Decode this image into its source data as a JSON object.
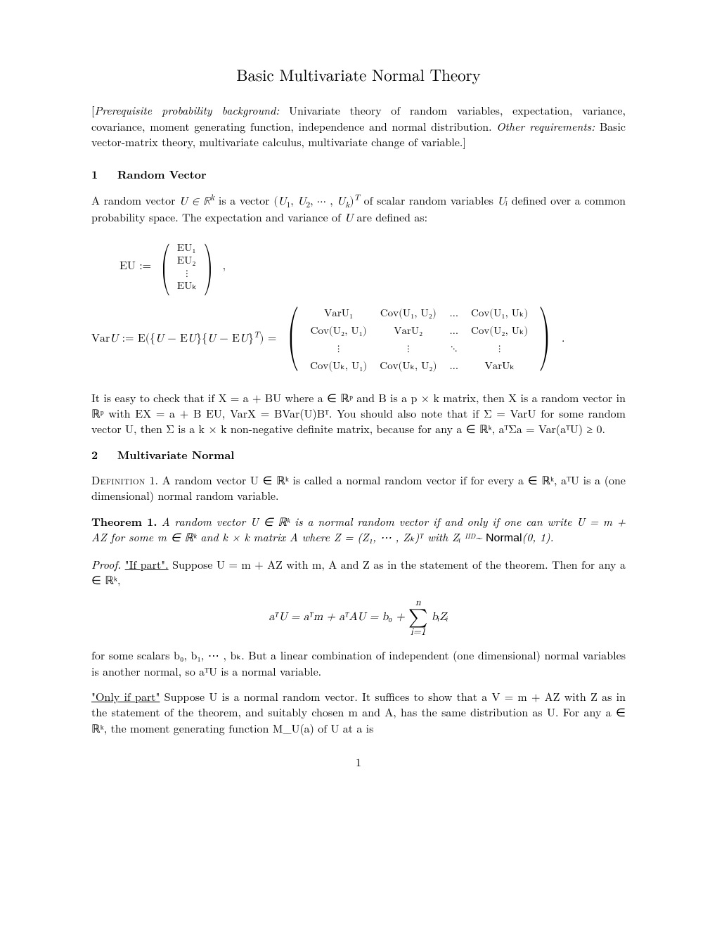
{
  "title": "Basic Multivariate Normal Theory",
  "prereq": "[Prerequisite probability background: Univariate theory of random variables, expectation, variance, covariance, moment generating function, independence and normal distribution. Other requirements: Basic vector-matrix theory, multivariate calculus, multivariate change of variable.]",
  "sec1_num": "1",
  "sec1_title": "Random Vector",
  "sec1_p1_a": "A random vector ",
  "sec1_p1_math1": "U ∈ ℝ",
  "sec1_p1_sup1": "k",
  "sec1_p1_b": " is a vector ",
  "sec1_p1_math2": "(U₁, U₂, ⋯ , U",
  "sec1_p1_sub2": "k",
  "sec1_p1_c": ")",
  "sec1_p1_sup2": "T",
  "sec1_p1_d": " of scalar random variables ",
  "sec1_p1_math3": "Uᵢ",
  "sec1_p1_e": " defined over a common probability space. The expectation and variance of ",
  "sec1_p1_math4": "U",
  "sec1_p1_f": " are defined as:",
  "EU_lhs": "EU :=",
  "EU_rows": [
    "EU₁",
    "EU₂",
    "⋮",
    "EUₖ"
  ],
  "comma": ",",
  "VarU_lhs": "VarU := E({U − EU}{U − EU}",
  "VarU_sup": "T",
  "VarU_rhs": ") =",
  "mat": {
    "r1": [
      "VarU₁",
      "Cov(U₁, U₂)",
      "…",
      "Cov(U₁, Uₖ)"
    ],
    "r2": [
      "Cov(U₂, U₁)",
      "VarU₂",
      "…",
      "Cov(U₂, Uₖ)"
    ],
    "r3": [
      "⋮",
      "⋮",
      "⋱",
      "⋮"
    ],
    "r4": [
      "Cov(Uₖ, U₁)",
      "Cov(Uₖ, U₂)",
      "…",
      "VarUₖ"
    ]
  },
  "period": ".",
  "sec1_p2": "It is easy to check that if X = a + BU where a ∈ ℝᵖ and B is a p × k matrix, then X is a random vector in ℝᵖ with EX = a + B EU, VarX = BVar(U)Bᵀ. You should also note that if Σ = VarU for some random vector U, then Σ is a k × k non-negative definite matrix, because for any a ∈ ℝᵏ, aᵀΣa = Var(aᵀU) ≥ 0.",
  "sec2_num": "2",
  "sec2_title": "Multivariate Normal",
  "def_label": "Definition",
  "def_num": "1.",
  "def_body": "A random vector U ∈ ℝᵏ is called a normal random vector if for every a ∈ ℝᵏ, aᵀU is a (one dimensional) normal random variable.",
  "thm_label": "Theorem 1.",
  "thm_body_a": "A random vector U ∈ ℝᵏ is a normal random vector if and only if one can write U = m + AZ for some m ∈ ℝᵏ and k × k matrix A where Z = (Z₁, ⋯ , Zₖ)ᵀ with Zᵢ ",
  "thm_iid": "IID",
  "thm_sim": "~",
  "thm_normal": "Normal",
  "thm_body_b": "(0, 1).",
  "proof_label": "Proof.",
  "proof_if_label": "\"If part\".",
  "proof_if_a": " Suppose U = m + AZ with m, A and Z as in the statement of the theorem. Then for any a ∈ ℝᵏ,",
  "eq2_lhs": "aᵀU = aᵀm + aᵀAU = b₀ + ",
  "eq2_sum_top": "n",
  "eq2_sum_bot": "i=1",
  "eq2_rhs": " bᵢZᵢ",
  "proof_if_b": "for some scalars b₀, b₁, ⋯ , bₖ. But a linear combination of independent (one dimensional) normal variables is another normal, so aᵀU is a normal variable.",
  "proof_only_label": "\"Only if part\"",
  "proof_only": " Suppose U is a normal random vector. It suffices to show that a V = m + AZ with Z as in the statement of the theorem, and suitably chosen m and A, has the same distribution as U. For any a ∈ ℝᵏ, the moment generating function M_U(a) of U at a is",
  "pagenum": "1"
}
